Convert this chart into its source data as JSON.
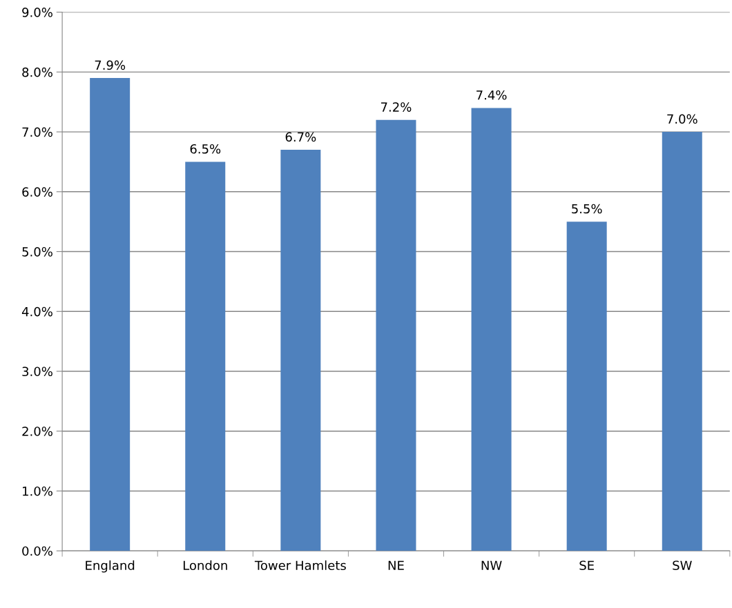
{
  "chart_data": {
    "type": "bar",
    "categories": [
      "England",
      "London",
      "Tower Hamlets",
      "NE",
      "NW",
      "SE",
      "SW"
    ],
    "values": [
      7.9,
      6.5,
      6.7,
      7.2,
      7.4,
      5.5,
      7.0
    ],
    "value_labels": [
      "7.9%",
      "6.5%",
      "6.7%",
      "7.2%",
      "7.4%",
      "5.5%",
      "7.0%"
    ],
    "color": "#4f81bd",
    "ylim": [
      0,
      9
    ],
    "yticks": [
      {
        "value": 0,
        "label": "0.0%"
      },
      {
        "value": 1,
        "label": "1.0%"
      },
      {
        "value": 2,
        "label": "2.0%"
      },
      {
        "value": 3,
        "label": "3.0%"
      },
      {
        "value": 4,
        "label": "4.0%"
      },
      {
        "value": 5,
        "label": "5.0%"
      },
      {
        "value": 6,
        "label": "6.0%"
      },
      {
        "value": 7,
        "label": "7.0%"
      },
      {
        "value": 8,
        "label": "8.0%"
      },
      {
        "value": 9,
        "label": "9.0%"
      }
    ],
    "grid": "y",
    "legend": false
  }
}
